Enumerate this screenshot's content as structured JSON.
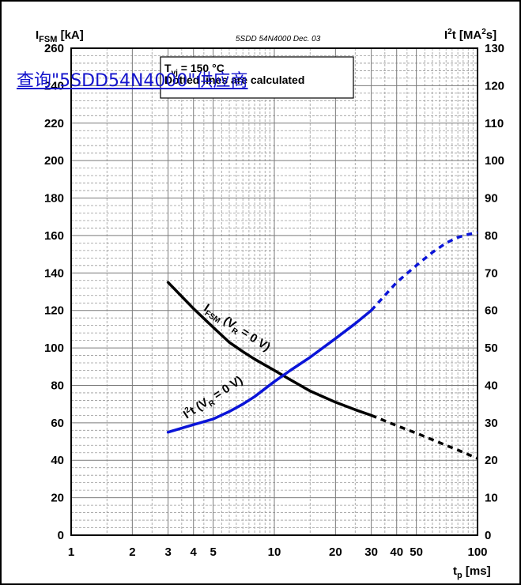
{
  "overlay_link": "查询\"5SDD54N4000\"供应商",
  "doc_code": "5SDD 54N4000 Dec. 03",
  "notes": {
    "tvj_prefix": "T",
    "tvj_sub": "vj",
    "tvj_value": " = 150 °C",
    "dotted_note": "Dotted lines are calculated"
  },
  "labels": {
    "ifsm_curve": "I",
    "ifsm_curve_sub": "FSM",
    "ifsm_curve_tail": " (V",
    "ifsm_curve_r": "R",
    "ifsm_curve_end": " = 0 V)",
    "i2t_curve": "I",
    "i2t_curve_sup": "2",
    "i2t_curve_t": "t (V",
    "i2t_curve_r": "R",
    "i2t_curve_end": " = 0 V)"
  },
  "colors": {
    "ifsm": "#000000",
    "i2t": "#0a14d8"
  },
  "chart_data": {
    "type": "line",
    "xscale": "log",
    "xlim": [
      1,
      100
    ],
    "xticks": [
      1,
      2,
      3,
      4,
      5,
      10,
      20,
      30,
      40,
      50,
      100
    ],
    "xlabel": {
      "main": "t",
      "sub": "p",
      "unit": " [ms]"
    },
    "ylabel_left": {
      "main": "I",
      "sub": "FSM",
      "unit": " [kA]"
    },
    "ylabel_right": {
      "main": "I",
      "sup": "2",
      "after": "t [MA",
      "sup2": "2",
      "unit": "s]"
    },
    "ylim_left": [
      0,
      260
    ],
    "ylim_right": [
      0,
      130
    ],
    "yticks_left": [
      0,
      20,
      40,
      60,
      80,
      100,
      120,
      140,
      160,
      180,
      200,
      220,
      240,
      260
    ],
    "yticks_right": [
      0,
      10,
      20,
      30,
      40,
      50,
      60,
      70,
      80,
      90,
      100,
      110,
      120,
      130
    ],
    "grid": true,
    "series": [
      {
        "axis": "left",
        "color": "#000000",
        "solid": {
          "x": [
            3,
            4,
            5,
            6,
            7,
            8,
            10,
            12,
            15,
            20,
            25,
            30
          ],
          "y": [
            135,
            121,
            111,
            103,
            98,
            94,
            88,
            83,
            77,
            71,
            67,
            64
          ]
        },
        "dotted": {
          "x": [
            30,
            40,
            50,
            60,
            70,
            80,
            100
          ],
          "y": [
            64,
            58.5,
            54.5,
            51,
            48,
            45.5,
            41
          ]
        }
      },
      {
        "axis": "right",
        "color": "#0a14d8",
        "solid": {
          "x": [
            3,
            4,
            5,
            6,
            7,
            8,
            10,
            12,
            15,
            20,
            25,
            30
          ],
          "y": [
            27.5,
            29.5,
            31,
            33,
            35,
            37,
            41,
            44,
            47.5,
            52.5,
            56.5,
            60
          ]
        },
        "dotted": {
          "x": [
            30,
            40,
            50,
            60,
            70,
            80,
            90,
            100
          ],
          "y": [
            60,
            67.5,
            72,
            75.5,
            78,
            79.5,
            80.3,
            80.8
          ]
        }
      }
    ]
  }
}
